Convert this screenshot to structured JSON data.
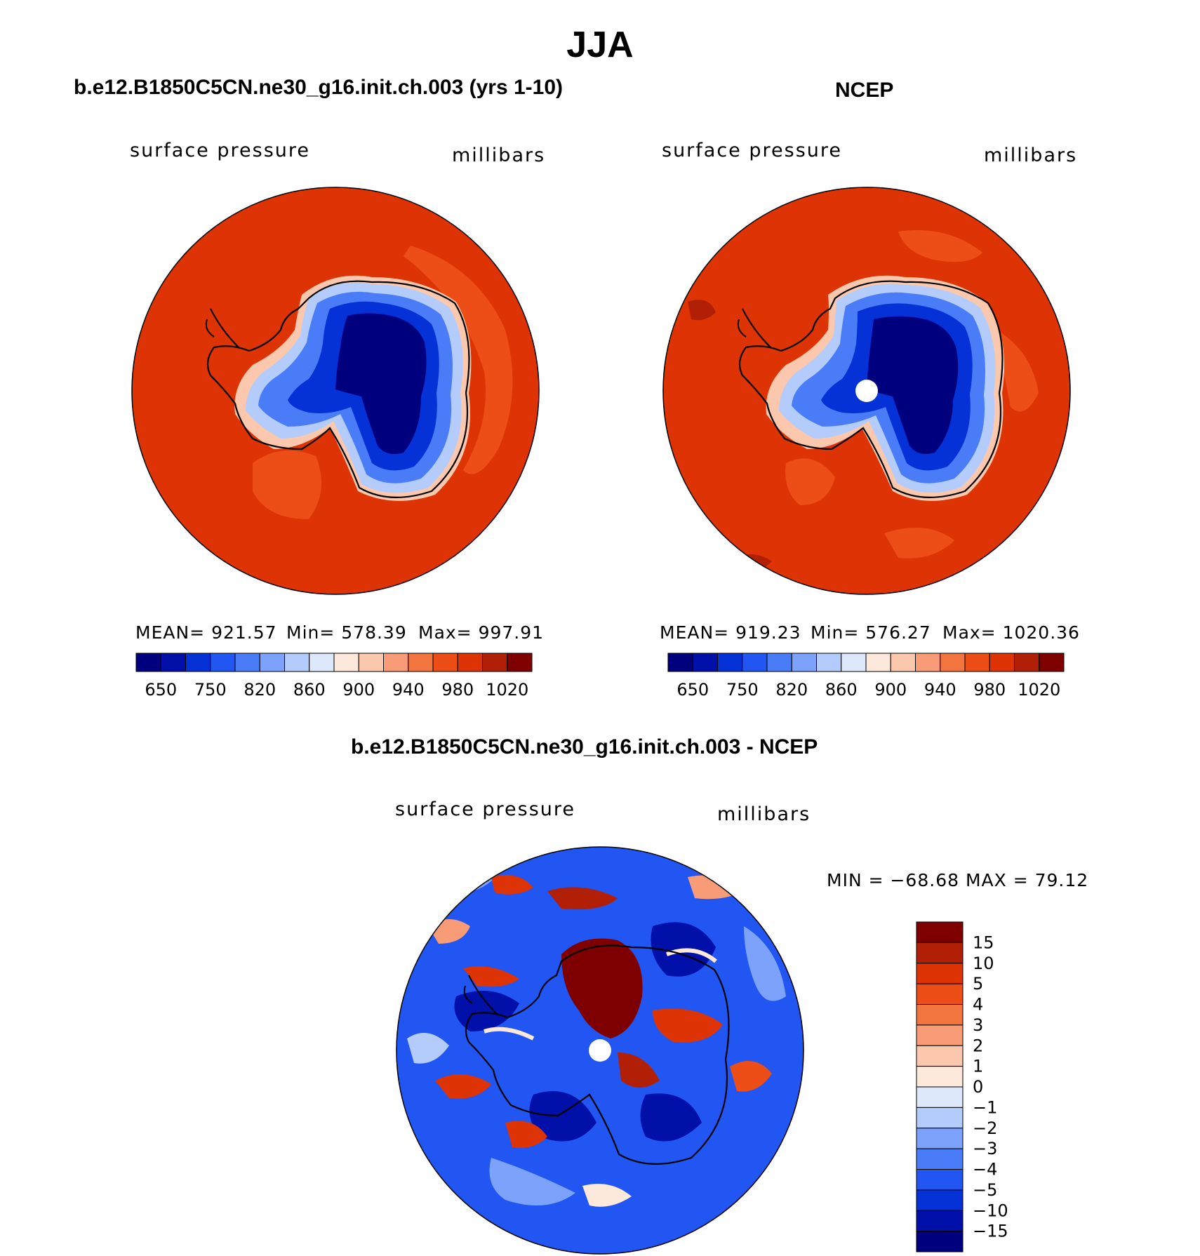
{
  "figure": {
    "season_title": "JJA"
  },
  "panels": [
    {
      "id": "model",
      "title": "b.e12.B1850C5CN.ne30_g16.init.ch.003 (yrs 1-10)",
      "left_label": "surface pressure",
      "right_label": "millibars",
      "stats": {
        "mean": "MEAN= 921.57",
        "min": "Min= 578.39",
        "max": "Max= 997.91"
      }
    },
    {
      "id": "obs",
      "title": "NCEP",
      "left_label": "surface pressure",
      "right_label": "millibars",
      "stats": {
        "mean": "MEAN= 919.23",
        "min": "Min= 576.27",
        "max": "Max= 1020.36"
      }
    },
    {
      "id": "diff",
      "title": "b.e12.B1850C5CN.ne30_g16.init.ch.003 - NCEP",
      "left_label": "surface pressure",
      "right_label": "millibars",
      "stats": {
        "minmax": "MIN = −68.68 MAX =   79.12"
      }
    }
  ],
  "colorbars": {
    "absolute": {
      "colors": [
        "#00007f",
        "#0010a8",
        "#0532d6",
        "#2156f2",
        "#4a7cf8",
        "#7da2fb",
        "#b4ccfb",
        "#dde9fb",
        "#fde9dc",
        "#fbc8ae",
        "#f89c78",
        "#f2743f",
        "#ed4e18",
        "#de3305",
        "#b11f06",
        "#7f0000"
      ],
      "tick_labels": [
        "650",
        "750",
        "820",
        "860",
        "900",
        "940",
        "980",
        "1020"
      ]
    },
    "difference": {
      "colors": [
        "#00007f",
        "#0010a8",
        "#0532d6",
        "#2156f2",
        "#4a7cf8",
        "#7da2fb",
        "#b4ccfb",
        "#dde9fb",
        "#fde9dc",
        "#fbc8ae",
        "#f89c78",
        "#f2743f",
        "#ed4e18",
        "#de3305",
        "#b11f06",
        "#7f0000"
      ],
      "tick_labels": [
        "15",
        "10",
        "5",
        "4",
        "3",
        "2",
        "1",
        "0",
        "−1",
        "−2",
        "−3",
        "−4",
        "−5",
        "−10",
        "−15"
      ]
    }
  },
  "chart_data": [
    {
      "type": "heatmap",
      "projection": "south polar stereographic",
      "title": "b.e12.B1850C5CN.ne30_g16.init.ch.003 (yrs 1-10)",
      "variable": "surface pressure",
      "units": "millibars",
      "levels": [
        650,
        750,
        820,
        860,
        900,
        940,
        980,
        1020
      ],
      "mean": 921.57,
      "min": 578.39,
      "max": 997.91
    },
    {
      "type": "heatmap",
      "projection": "south polar stereographic",
      "title": "NCEP",
      "variable": "surface pressure",
      "units": "millibars",
      "levels": [
        650,
        750,
        820,
        860,
        900,
        940,
        980,
        1020
      ],
      "mean": 919.23,
      "min": 576.27,
      "max": 1020.36
    },
    {
      "type": "heatmap",
      "projection": "south polar stereographic",
      "title": "b.e12.B1850C5CN.ne30_g16.init.ch.003 - NCEP",
      "variable": "surface pressure",
      "units": "millibars",
      "levels": [
        -15,
        -10,
        -5,
        -4,
        -3,
        -2,
        -1,
        0,
        1,
        2,
        3,
        4,
        5,
        10,
        15
      ],
      "min": -68.68,
      "max": 79.12
    }
  ]
}
